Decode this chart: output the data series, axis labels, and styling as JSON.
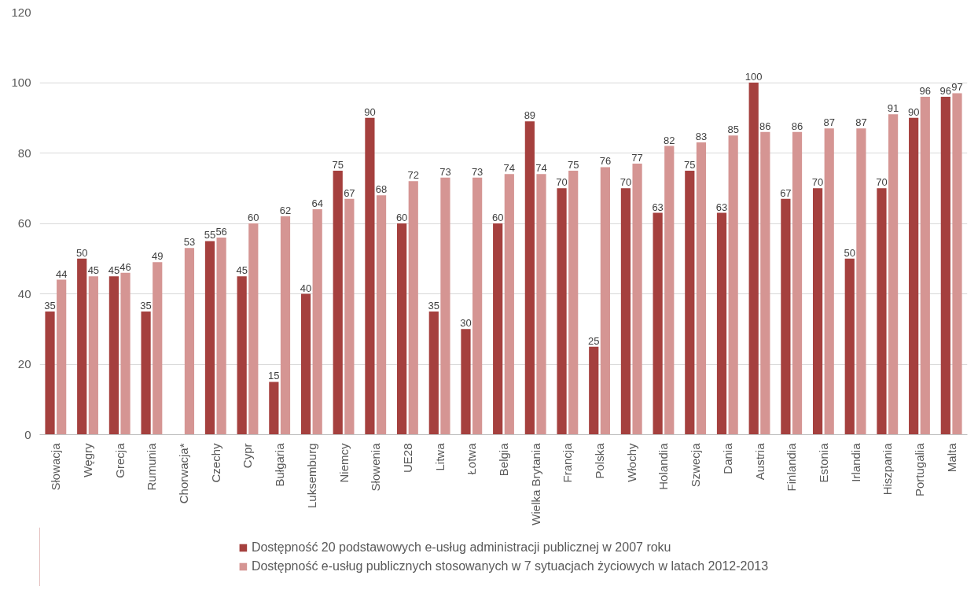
{
  "chart_data": {
    "type": "bar",
    "categories": [
      "Słowacja",
      "Węgry",
      "Grecja",
      "Rumunia",
      "Chorwacja*",
      "Czechy",
      "Cypr",
      "Bułgaria",
      "Luksemburg",
      "Niemcy",
      "Słowenia",
      "UE28",
      "Litwa",
      "Łotwa",
      "Belgia",
      "Wielka Brytania",
      "Francja",
      "Polska",
      "Włochy",
      "Holandia",
      "Szwecja",
      "Dania",
      "Austria",
      "Finlandia",
      "Estonia",
      "Irlandia",
      "Hiszpania",
      "Portugalia",
      "Malta"
    ],
    "series": [
      {
        "name": "Dostępność 20 podstawowych e-usług administracji publicznej w 2007 roku",
        "color": "#a5403e",
        "values": [
          35,
          50,
          45,
          35,
          null,
          55,
          45,
          15,
          40,
          75,
          90,
          60,
          35,
          30,
          60,
          89,
          70,
          25,
          70,
          63,
          75,
          63,
          100,
          67,
          70,
          50,
          70,
          90,
          96
        ]
      },
      {
        "name": "Dostępność e-usług publicznych stosowanych w 7 sytuacjach życiowych w latach 2012-2013",
        "color": "#d59593",
        "values": [
          44,
          45,
          46,
          49,
          53,
          56,
          60,
          62,
          64,
          67,
          68,
          72,
          73,
          73,
          74,
          74,
          75,
          76,
          77,
          82,
          83,
          85,
          86,
          86,
          87,
          87,
          91,
          96,
          97
        ]
      }
    ],
    "ylim": [
      0,
      120
    ],
    "yticks": [
      0,
      20,
      40,
      60,
      80,
      100,
      120
    ],
    "grid": "y",
    "data_labels": true,
    "legend": "bottom"
  }
}
